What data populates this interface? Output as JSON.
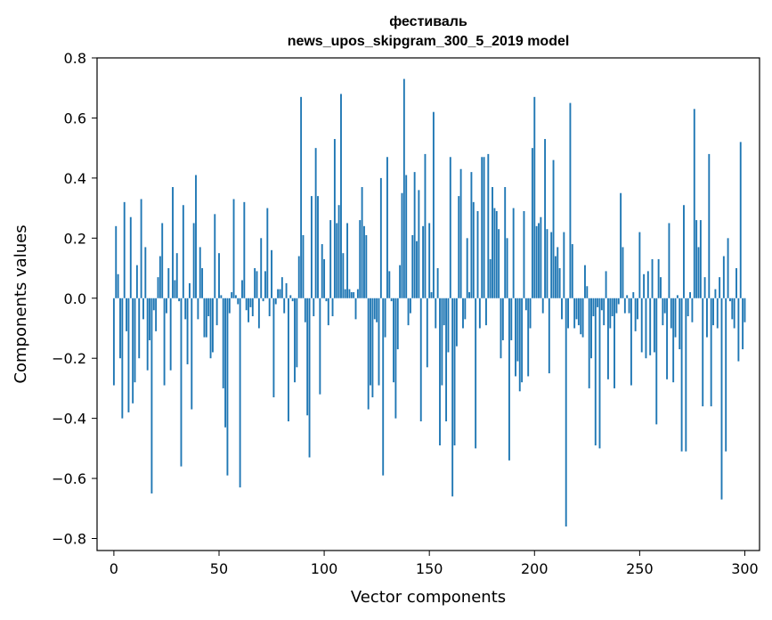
{
  "chart_data": {
    "type": "bar",
    "title": "фестиваль",
    "subtitle": "news_upos_skipgram_300_5_2019 model",
    "xlabel": "Vector components",
    "ylabel": "Components values",
    "xlim": [
      -8,
      307
    ],
    "ylim": [
      -0.84,
      0.8
    ],
    "xticks": [
      0,
      50,
      100,
      150,
      200,
      250,
      300
    ],
    "xtick_labels": [
      "0",
      "50",
      "100",
      "150",
      "200",
      "250",
      "300"
    ],
    "yticks": [
      -0.8,
      -0.6,
      -0.4,
      -0.2,
      0.0,
      0.2,
      0.4,
      0.6,
      0.8
    ],
    "ytick_labels": [
      "−0.8",
      "−0.6",
      "−0.4",
      "−0.2",
      "0.0",
      "0.2",
      "0.4",
      "0.6",
      "0.8"
    ],
    "bar_color": "#1f77b4",
    "grid": false,
    "values": [
      -0.29,
      0.24,
      0.08,
      -0.2,
      -0.4,
      0.32,
      -0.11,
      -0.38,
      0.27,
      -0.35,
      -0.28,
      0.11,
      -0.2,
      0.33,
      -0.07,
      0.17,
      -0.24,
      -0.14,
      -0.65,
      -0.04,
      -0.11,
      0.07,
      0.14,
      0.25,
      -0.29,
      -0.05,
      0.1,
      -0.24,
      0.37,
      0.06,
      0.15,
      -0.01,
      -0.56,
      0.31,
      -0.07,
      -0.22,
      0.05,
      -0.37,
      0.25,
      0.41,
      -0.07,
      0.17,
      0.1,
      -0.13,
      -0.13,
      -0.06,
      -0.2,
      -0.18,
      0.28,
      -0.09,
      0.15,
      0.01,
      -0.3,
      -0.43,
      -0.59,
      -0.05,
      0.02,
      0.33,
      0.01,
      -0.02,
      -0.63,
      0.06,
      0.32,
      -0.04,
      -0.08,
      -0.03,
      -0.06,
      0.1,
      0.09,
      -0.1,
      0.2,
      -0.01,
      0.09,
      0.3,
      -0.06,
      0.16,
      -0.33,
      -0.02,
      0.03,
      0.03,
      0.07,
      -0.05,
      0.05,
      -0.41,
      0.01,
      -0.01,
      -0.28,
      -0.23,
      0.14,
      0.67,
      0.21,
      -0.08,
      -0.39,
      -0.53,
      0.34,
      -0.06,
      0.5,
      0.34,
      -0.32,
      0.18,
      0.13,
      -0.01,
      -0.09,
      0.26,
      -0.06,
      0.53,
      0.25,
      0.31,
      0.68,
      0.15,
      0.03,
      0.25,
      0.03,
      0.02,
      0.02,
      -0.07,
      0.03,
      0.26,
      0.37,
      0.24,
      0.21,
      -0.37,
      -0.29,
      -0.33,
      -0.07,
      -0.08,
      -0.29,
      0.4,
      -0.59,
      -0.13,
      0.47,
      0.09,
      -0.01,
      -0.28,
      -0.4,
      -0.17,
      0.11,
      0.35,
      0.73,
      0.41,
      -0.09,
      -0.05,
      0.21,
      0.42,
      0.19,
      0.36,
      -0.41,
      0.24,
      0.48,
      -0.23,
      0.25,
      0.02,
      0.62,
      -0.1,
      0.1,
      -0.49,
      -0.29,
      -0.09,
      -0.41,
      -0.18,
      0.47,
      -0.66,
      -0.49,
      -0.16,
      0.34,
      0.43,
      -0.1,
      -0.07,
      0.2,
      0.02,
      0.42,
      0.32,
      -0.5,
      0.29,
      -0.1,
      0.47,
      0.47,
      -0.09,
      0.48,
      0.13,
      0.37,
      0.3,
      0.29,
      0.23,
      -0.2,
      -0.14,
      0.37,
      0.2,
      -0.54,
      -0.14,
      0.3,
      -0.26,
      -0.21,
      -0.31,
      -0.28,
      0.29,
      -0.04,
      -0.26,
      -0.1,
      0.5,
      0.67,
      0.24,
      0.25,
      0.27,
      -0.05,
      0.53,
      0.23,
      -0.25,
      0.22,
      0.46,
      0.14,
      0.17,
      0.1,
      -0.07,
      0.22,
      -0.76,
      -0.1,
      0.65,
      0.18,
      -0.1,
      -0.07,
      -0.09,
      -0.12,
      -0.13,
      0.11,
      0.04,
      -0.3,
      -0.2,
      -0.06,
      -0.49,
      -0.03,
      -0.5,
      -0.04,
      -0.09,
      0.09,
      -0.27,
      -0.1,
      -0.06,
      -0.3,
      -0.05,
      -0.02,
      0.35,
      0.17,
      -0.05,
      0.01,
      -0.05,
      -0.29,
      0.02,
      -0.11,
      -0.07,
      0.22,
      -0.18,
      0.08,
      -0.2,
      0.09,
      -0.19,
      0.13,
      -0.18,
      -0.42,
      0.13,
      0.07,
      -0.09,
      -0.05,
      -0.27,
      0.25,
      -0.1,
      -0.28,
      -0.13,
      0.01,
      -0.17,
      -0.51,
      0.31,
      -0.51,
      -0.06,
      0.02,
      -0.08,
      0.63,
      0.26,
      0.17,
      0.26,
      -0.36,
      0.07,
      -0.13,
      0.48,
      -0.36,
      -0.09,
      0.03,
      -0.1,
      0.07,
      -0.67,
      0.14,
      -0.51,
      0.2,
      -0.01,
      -0.07,
      -0.1,
      0.1,
      -0.21,
      0.52,
      -0.17,
      -0.08
    ]
  }
}
